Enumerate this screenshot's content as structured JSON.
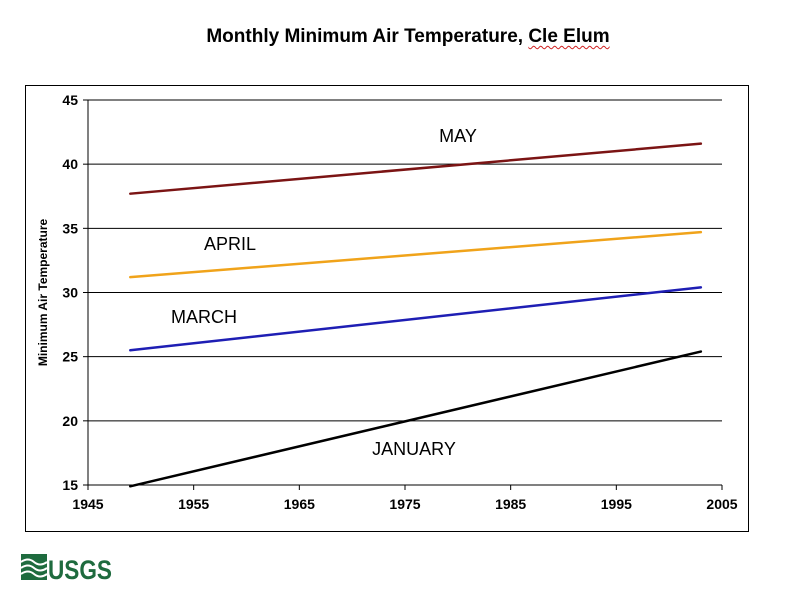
{
  "title_prefix": "Monthly Minimum Air Temperature, ",
  "title_place": "Cle Elum",
  "logo_text": "USGS",
  "colors": {
    "may": "#7b1414",
    "april": "#f0a31a",
    "march": "#1e1eb4",
    "january": "#000000",
    "logo": "#1e6b3e"
  },
  "chart_data": {
    "type": "line",
    "title": "Monthly Minimum Air Temperature, Cle Elum",
    "xlabel": "",
    "ylabel": "Minimum Air Temperature",
    "xlim": [
      1945,
      2005
    ],
    "ylim": [
      15,
      45
    ],
    "xticks": [
      1945,
      1955,
      1965,
      1975,
      1985,
      1995,
      2005
    ],
    "yticks": [
      15,
      20,
      25,
      30,
      35,
      40,
      45
    ],
    "grid": "horizontal",
    "legend": "inline labels",
    "series": [
      {
        "name": "MAY",
        "color": "#7b1414",
        "x": [
          1949,
          2003
        ],
        "y": [
          37.7,
          41.6
        ]
      },
      {
        "name": "APRIL",
        "color": "#f0a31a",
        "x": [
          1949,
          2003
        ],
        "y": [
          31.2,
          34.7
        ]
      },
      {
        "name": "MARCH",
        "color": "#1e1eb4",
        "x": [
          1949,
          2003
        ],
        "y": [
          25.5,
          30.4
        ]
      },
      {
        "name": "JANUARY",
        "color": "#000000",
        "x": [
          1949,
          2003
        ],
        "y": [
          14.9,
          25.4
        ]
      }
    ]
  }
}
